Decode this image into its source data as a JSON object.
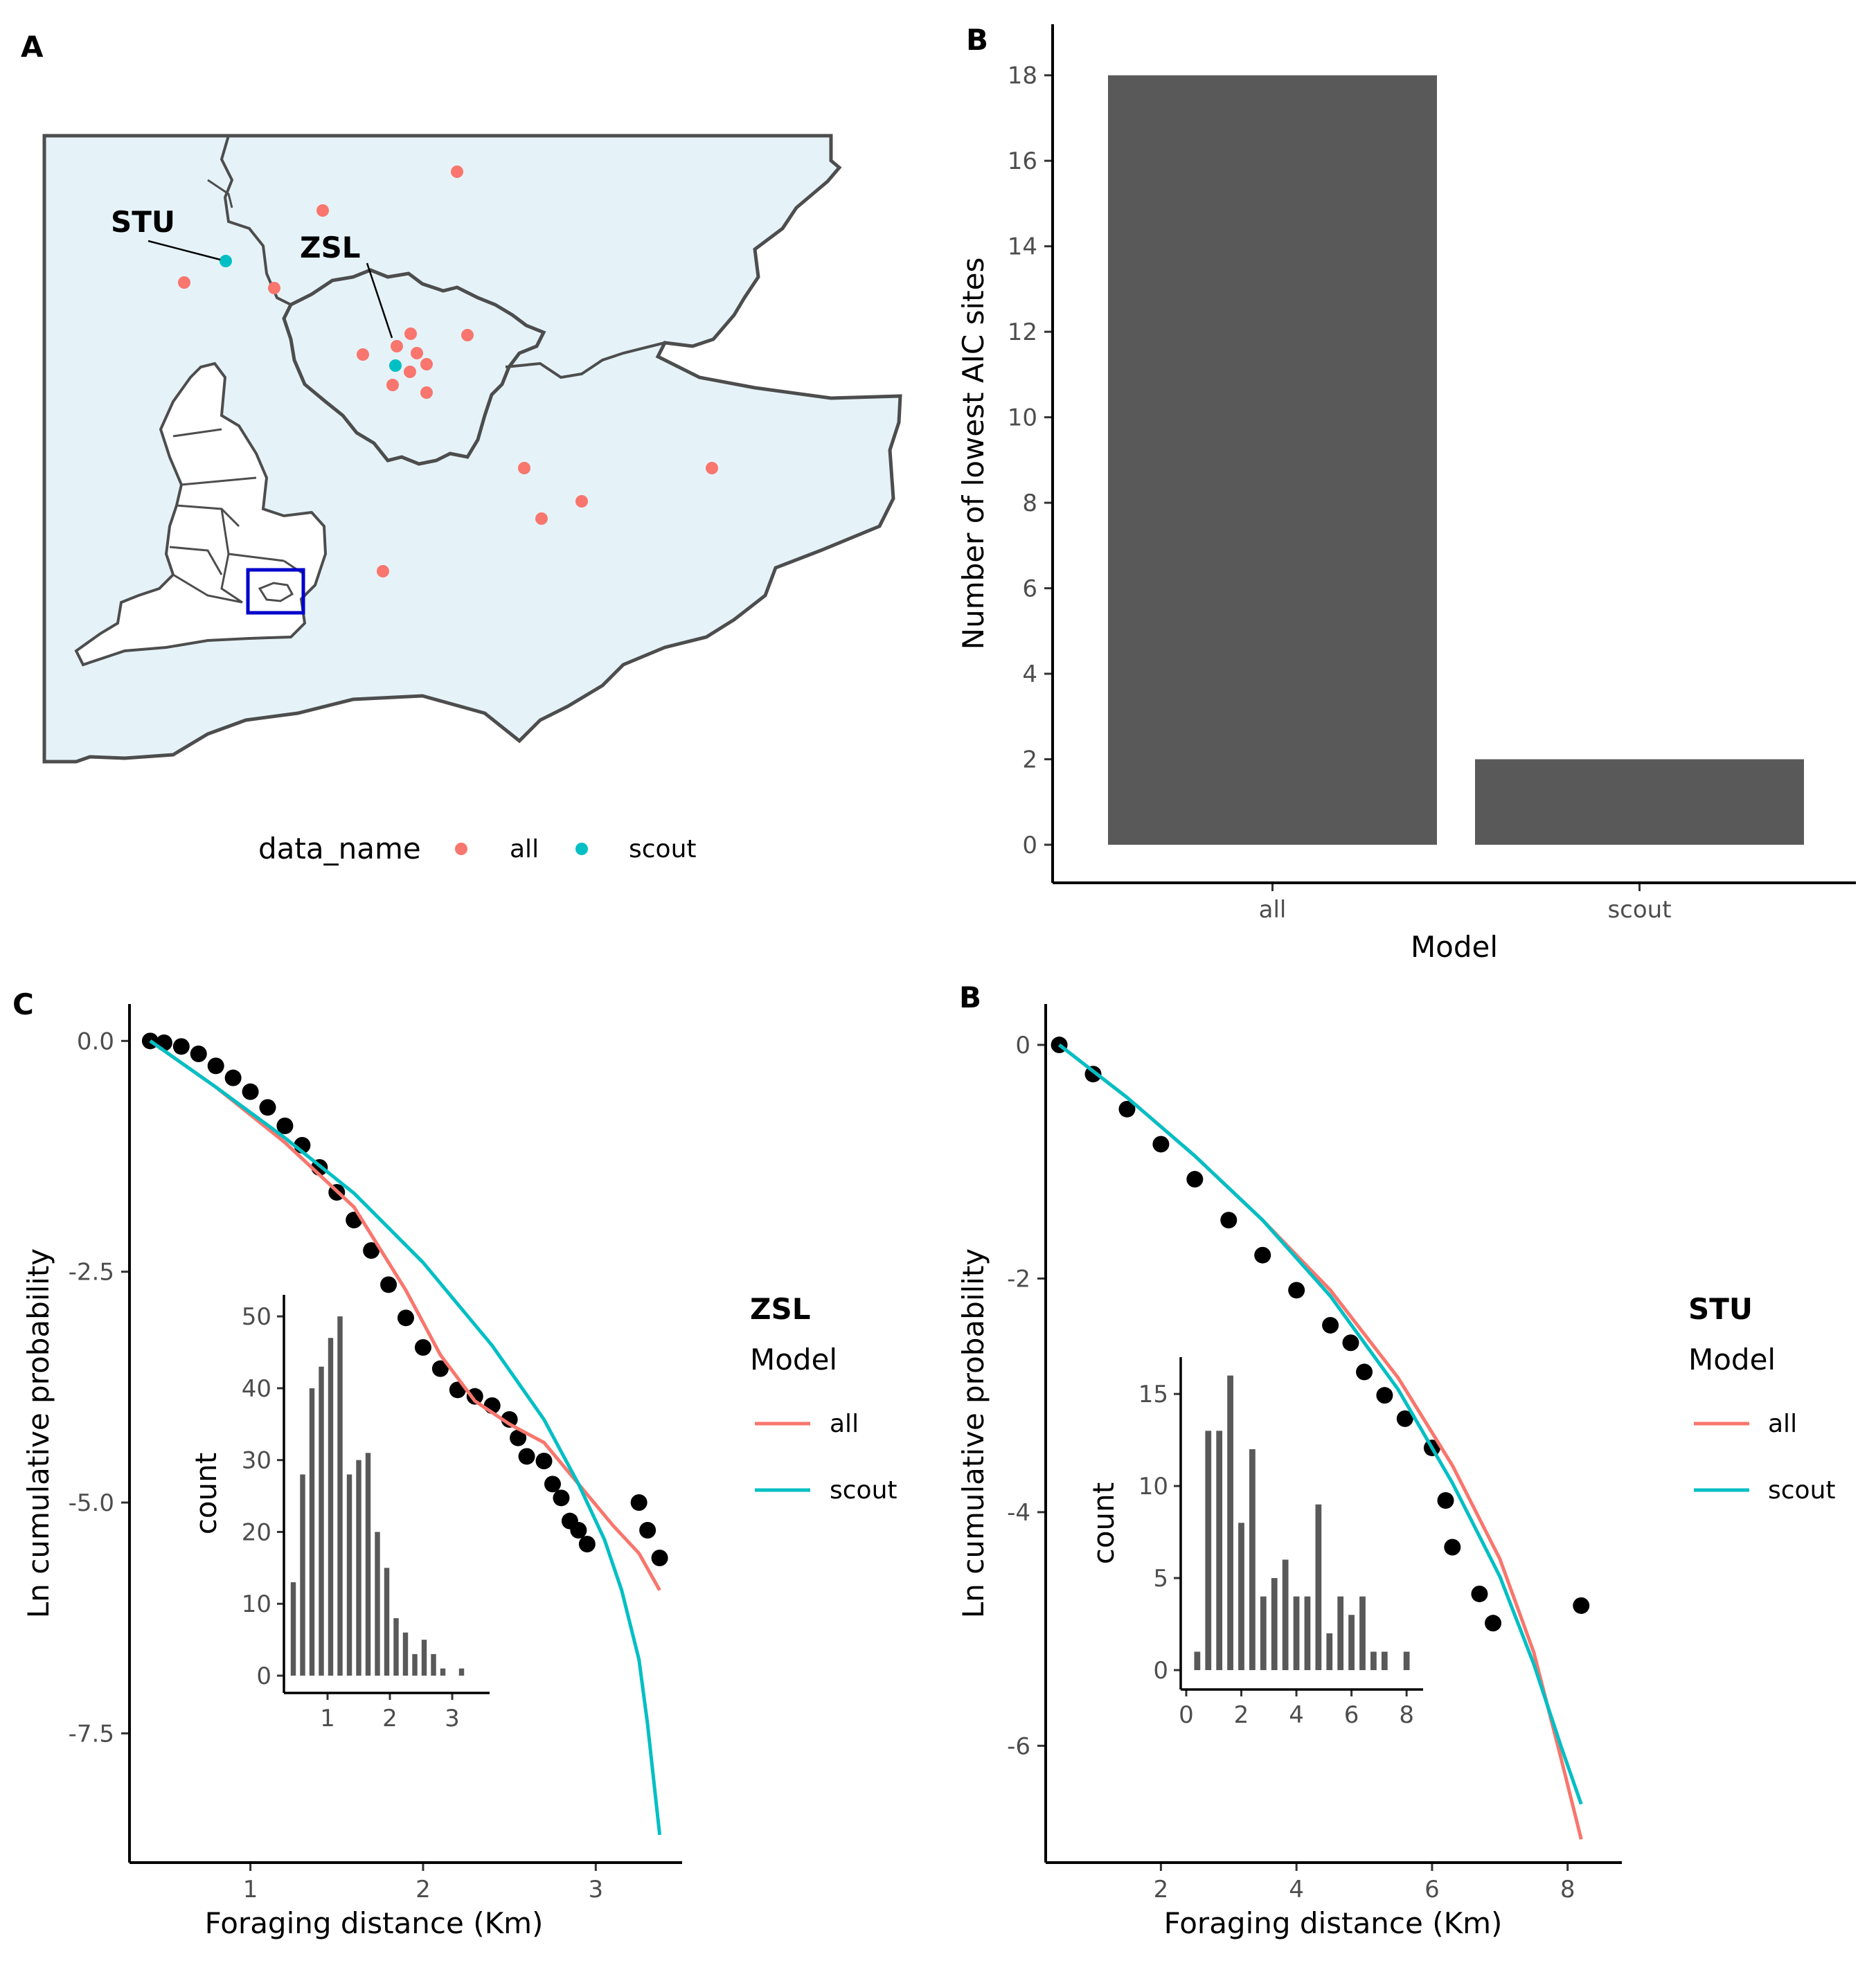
{
  "chart_data": [
    {
      "panel": "A",
      "type": "scatter",
      "legend": {
        "title": "data_name",
        "items": [
          {
            "label": "all",
            "color": "#F8766D"
          },
          {
            "label": "scout",
            "color": "#00BFC4"
          }
        ],
        "placement": "bottom"
      },
      "site_labels": [
        "STU",
        "ZSL"
      ],
      "inset_box_color": "#0000CC",
      "land_fill": "#e5f3f9",
      "border_color": "#4d4d4d"
    },
    {
      "panel": "B",
      "type": "bar",
      "categories": [
        "all",
        "scout"
      ],
      "values": [
        18,
        2
      ],
      "xlabel": "Model",
      "ylabel": "Number of lowest AIC sites",
      "ylim": [
        0,
        19
      ],
      "yticks": [
        0,
        2,
        4,
        6,
        8,
        10,
        12,
        14,
        16,
        18
      ],
      "bar_color": "#595959",
      "grid": false
    },
    {
      "panel": "C",
      "type": "scatter",
      "xlabel": "Foraging distance (Km)",
      "ylabel": "Ln cumulative probability",
      "xlim": [
        0.3,
        3.5
      ],
      "ylim": [
        -8.9,
        0.4
      ],
      "xticks": [
        1,
        2,
        3
      ],
      "yticks": [
        "0.0",
        "-2.5",
        "-5.0",
        "-7.5"
      ],
      "ytick_values": [
        0,
        -2.5,
        -5,
        -7.5
      ],
      "legend": {
        "heading": "ZSL",
        "title": "Model",
        "items": [
          {
            "label": "all",
            "color": "#F8766D"
          },
          {
            "label": "scout",
            "color": "#00BFC4"
          }
        ],
        "placement": "right"
      },
      "points": {
        "x": [
          0.42,
          0.5,
          0.6,
          0.7,
          0.8,
          0.9,
          1.0,
          1.1,
          1.2,
          1.3,
          1.4,
          1.5,
          1.6,
          1.7,
          1.8,
          1.9,
          2.0,
          2.1,
          2.2,
          2.3,
          2.4,
          2.5,
          2.55,
          2.6,
          2.7,
          2.75,
          2.8,
          2.85,
          2.9,
          2.95,
          3.25,
          3.3,
          3.37
        ],
        "y": [
          0.0,
          -0.02,
          -0.06,
          -0.14,
          -0.27,
          -0.4,
          -0.55,
          -0.72,
          -0.92,
          -1.13,
          -1.37,
          -1.64,
          -1.94,
          -2.27,
          -2.64,
          -3.0,
          -3.32,
          -3.55,
          -3.78,
          -3.85,
          -3.95,
          -4.1,
          -4.3,
          -4.5,
          -4.55,
          -4.8,
          -4.95,
          -5.2,
          -5.3,
          -5.45,
          -5.0,
          -5.3,
          -5.6
        ]
      },
      "series": [
        {
          "name": "all",
          "x": [
            0.42,
            0.8,
            1.2,
            1.6,
            1.9,
            2.1,
            2.3,
            2.5,
            2.7,
            2.9,
            3.1,
            3.25,
            3.37
          ],
          "y": [
            0.0,
            -0.5,
            -1.1,
            -1.8,
            -2.7,
            -3.4,
            -3.9,
            -4.15,
            -4.35,
            -4.8,
            -5.25,
            -5.55,
            -5.95
          ]
        },
        {
          "name": "scout",
          "x": [
            0.42,
            0.8,
            1.2,
            1.6,
            2.0,
            2.4,
            2.7,
            2.9,
            3.05,
            3.15,
            3.25,
            3.3,
            3.37
          ],
          "y": [
            0.0,
            -0.5,
            -1.05,
            -1.65,
            -2.4,
            -3.3,
            -4.1,
            -4.8,
            -5.4,
            -5.95,
            -6.7,
            -7.4,
            -8.6
          ]
        }
      ],
      "inset": {
        "type": "bar",
        "ylabel": "count",
        "xlim": [
          0.3,
          3.6
        ],
        "ylim": [
          0,
          53
        ],
        "xticks": [
          1,
          2,
          3
        ],
        "yticks": [
          0,
          10,
          20,
          30,
          40,
          50
        ],
        "x": [
          0.45,
          0.6,
          0.75,
          0.9,
          1.05,
          1.2,
          1.35,
          1.5,
          1.65,
          1.8,
          1.95,
          2.1,
          2.25,
          2.4,
          2.55,
          2.7,
          2.85,
          3.0,
          3.15,
          3.3
        ],
        "values": [
          13,
          28,
          40,
          43,
          47,
          50,
          28,
          30,
          31,
          20,
          15,
          8,
          6,
          3,
          5,
          3,
          1,
          0,
          1,
          0
        ]
      }
    },
    {
      "panel": "B",
      "type": "scatter",
      "xlabel": "Foraging distance (Km)",
      "ylabel": "Ln cumulative probability",
      "xlim": [
        0.3,
        8.8
      ],
      "ylim": [
        -7.0,
        0.35
      ],
      "xticks": [
        2,
        4,
        6,
        8
      ],
      "yticks": [
        0,
        -2,
        -4,
        -6
      ],
      "legend": {
        "heading": "STU",
        "title": "Model",
        "items": [
          {
            "label": "all",
            "color": "#F8766D"
          },
          {
            "label": "scout",
            "color": "#00BFC4"
          }
        ],
        "placement": "right"
      },
      "points": {
        "x": [
          0.5,
          1.0,
          1.5,
          2.0,
          2.5,
          3.0,
          3.5,
          4.0,
          4.5,
          4.8,
          5.0,
          5.3,
          5.6,
          6.0,
          6.2,
          6.3,
          6.7,
          6.9,
          8.2
        ],
        "y": [
          0.0,
          -0.25,
          -0.55,
          -0.85,
          -1.15,
          -1.5,
          -1.8,
          -2.1,
          -2.4,
          -2.55,
          -2.8,
          -3.0,
          -3.2,
          -3.45,
          -3.9,
          -4.3,
          -4.7,
          -4.95,
          -4.8
        ]
      },
      "series": [
        {
          "name": "all",
          "x": [
            0.5,
            1.5,
            2.5,
            3.5,
            4.5,
            5.5,
            6.3,
            7.0,
            7.5,
            7.9,
            8.2
          ],
          "y": [
            0.0,
            -0.45,
            -0.95,
            -1.5,
            -2.1,
            -2.85,
            -3.6,
            -4.4,
            -5.2,
            -6.1,
            -6.8
          ]
        },
        {
          "name": "scout",
          "x": [
            0.5,
            1.5,
            2.5,
            3.5,
            4.5,
            5.5,
            6.3,
            7.0,
            7.5,
            7.9,
            8.2
          ],
          "y": [
            0.0,
            -0.45,
            -0.95,
            -1.5,
            -2.15,
            -2.95,
            -3.75,
            -4.55,
            -5.3,
            -6.0,
            -6.5
          ]
        }
      ],
      "inset": {
        "type": "bar",
        "ylabel": "count",
        "xlim": [
          -0.2,
          8.6
        ],
        "ylim": [
          0,
          17
        ],
        "xticks": [
          0,
          2,
          4,
          6,
          8
        ],
        "yticks": [
          0,
          5,
          10,
          15
        ],
        "x": [
          0.4,
          0.8,
          1.2,
          1.6,
          2.0,
          2.4,
          2.8,
          3.2,
          3.6,
          4.0,
          4.4,
          4.8,
          5.2,
          5.6,
          6.0,
          6.4,
          6.8,
          7.2,
          7.6,
          8.0
        ],
        "values": [
          1,
          13,
          13,
          16,
          8,
          12,
          4,
          5,
          6,
          4,
          4,
          9,
          2,
          4,
          3,
          4,
          1,
          1,
          0,
          1
        ]
      }
    }
  ]
}
